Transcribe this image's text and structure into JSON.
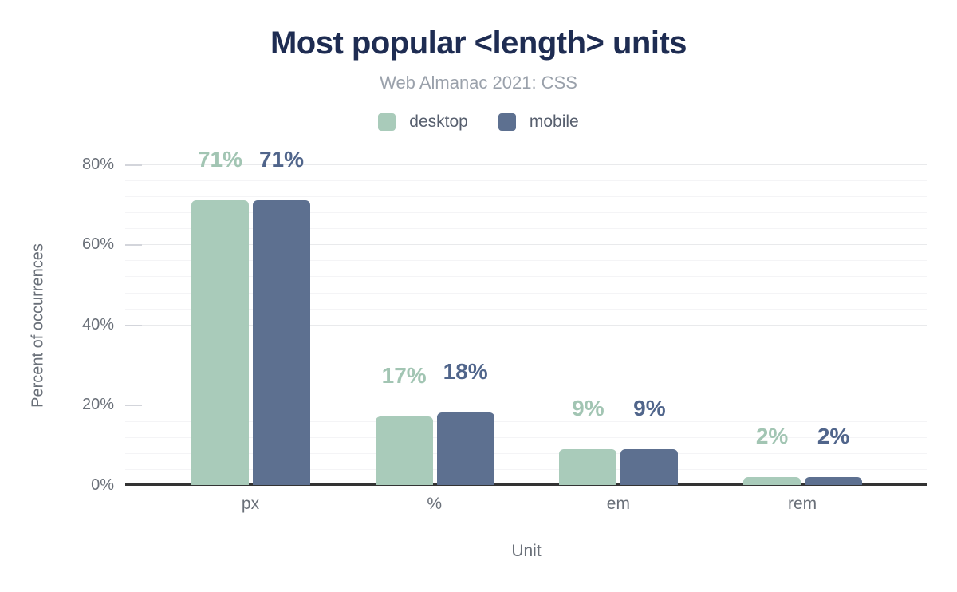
{
  "title": "Most popular <length> units",
  "subtitle": "Web Almanac 2021: CSS",
  "legend": {
    "items": [
      {
        "label": "desktop",
        "color": "#a9cbba"
      },
      {
        "label": "mobile",
        "color": "#5d7090"
      }
    ]
  },
  "chart_data": {
    "type": "bar",
    "title": "Most popular <length> units",
    "subtitle": "Web Almanac 2021: CSS",
    "categories": [
      "px",
      "%",
      "em",
      "rem"
    ],
    "series": [
      {
        "name": "desktop",
        "color": "#a9cbba",
        "label_color": "#a2c5b3",
        "values": [
          71,
          17,
          9,
          2
        ],
        "labels": [
          "71%",
          "17%",
          "9%",
          "2%"
        ]
      },
      {
        "name": "mobile",
        "color": "#5d7090",
        "label_color": "#50658b",
        "values": [
          71,
          18,
          9,
          2
        ],
        "labels": [
          "71%",
          "18%",
          "9%",
          "2%"
        ]
      }
    ],
    "xlabel": "Unit",
    "ylabel": "Percent of occurrences",
    "y_ticks": [
      {
        "label": "0%",
        "value": 0
      },
      {
        "label": "20%",
        "value": 20
      },
      {
        "label": "40%",
        "value": 40
      },
      {
        "label": "60%",
        "value": 60
      },
      {
        "label": "80%",
        "value": 80
      }
    ],
    "ylim": [
      0,
      84
    ],
    "grid": {
      "horizontal": true,
      "minor_step": 4,
      "major_step": 20
    },
    "legend_position": "top"
  }
}
